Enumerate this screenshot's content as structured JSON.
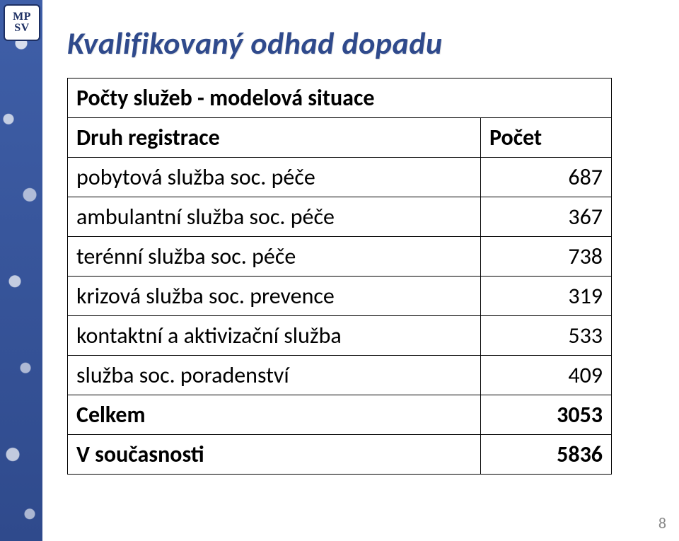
{
  "logo": {
    "line1": "MP",
    "line2": "SV"
  },
  "title": "Kvalifikovaný odhad dopadu",
  "table": {
    "merged_header": "Počty služeb - modelová situace",
    "col1": "Druh registrace",
    "col2": "Počet",
    "rows": [
      {
        "label": "pobytová služba soc. péče",
        "value": "687"
      },
      {
        "label": "ambulantní služba soc. péče",
        "value": "367"
      },
      {
        "label": "terénní služba soc. péče",
        "value": "738"
      },
      {
        "label": "krizová služba soc. prevence",
        "value": "319"
      },
      {
        "label": "kontaktní a aktivizační služba",
        "value": "533"
      },
      {
        "label": "služba soc. poradenství",
        "value": "409"
      }
    ],
    "totals": [
      {
        "label": "Celkem",
        "value": "3053"
      },
      {
        "label": "V současnosti",
        "value": "5836"
      }
    ]
  },
  "page_number": "8",
  "colors": {
    "title": "#2f4a8c",
    "strip_top": "#3f5fa8",
    "strip_bottom": "#2f4a8c",
    "border": "#000000",
    "text": "#000000",
    "page_num": "#8a8a8a",
    "logo_border": "#1d2f63"
  },
  "fonts": {
    "title_size_pt": 33,
    "table_size_pt": 24,
    "title_italic": true,
    "title_bold": true
  }
}
